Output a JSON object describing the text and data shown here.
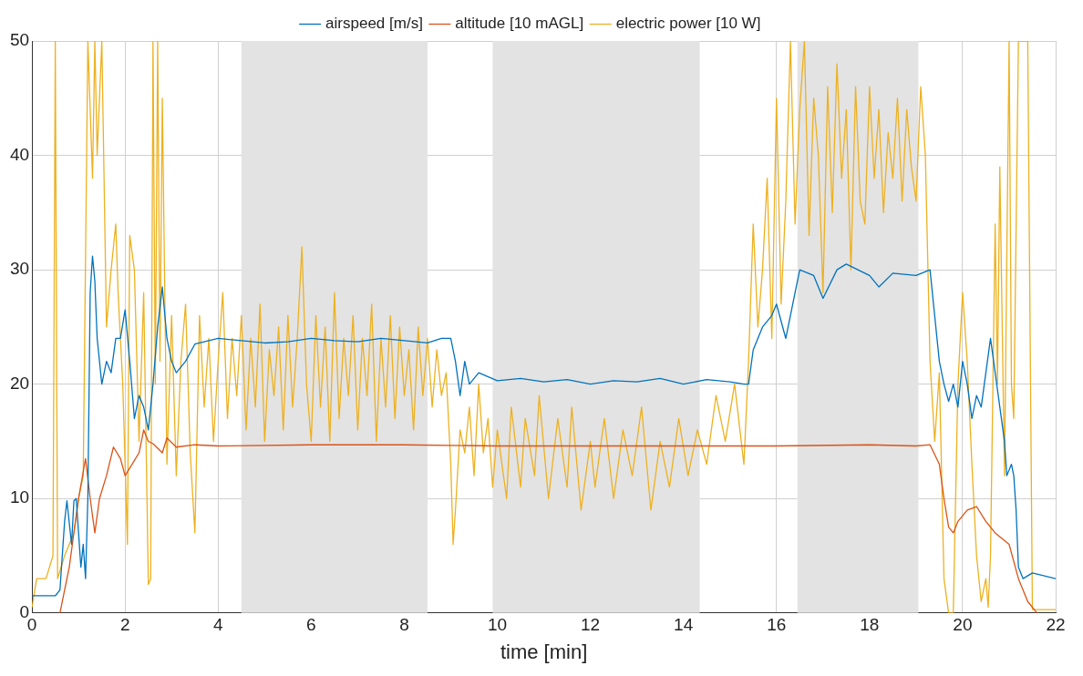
{
  "chart_data": {
    "type": "line",
    "xlabel": "time [min]",
    "xlim": [
      0,
      22
    ],
    "xticks": [
      0,
      2,
      4,
      6,
      8,
      10,
      12,
      14,
      16,
      18,
      20,
      22
    ],
    "ylim": [
      0,
      50
    ],
    "yticks": [
      0,
      10,
      20,
      30,
      40,
      50
    ],
    "grid": true,
    "legend": "top",
    "marker": "none",
    "line_style": "solid",
    "bands": [
      {
        "axis": "x",
        "from": 4.5,
        "to": 8.5,
        "color": "#e3e3e3"
      },
      {
        "axis": "x",
        "from": 9.9,
        "to": 14.35,
        "color": "#e3e3e3"
      },
      {
        "axis": "x",
        "from": 16.45,
        "to": 19.05,
        "color": "#e3e3e3"
      }
    ],
    "series": [
      {
        "name": "airspeed [m/s]",
        "color": "#0072bd",
        "x": [
          0,
          0.5,
          0.6,
          0.7,
          0.75,
          0.85,
          0.9,
          0.95,
          1.0,
          1.05,
          1.1,
          1.15,
          1.2,
          1.25,
          1.3,
          1.35,
          1.4,
          1.5,
          1.6,
          1.7,
          1.8,
          1.9,
          2.0,
          2.1,
          2.2,
          2.3,
          2.4,
          2.5,
          2.6,
          2.7,
          2.8,
          2.9,
          3.0,
          3.1,
          3.3,
          3.5,
          4.0,
          4.5,
          5,
          5.5,
          6,
          6.5,
          7,
          7.5,
          8,
          8.5,
          8.8,
          9.0,
          9.1,
          9.2,
          9.3,
          9.4,
          9.6,
          10,
          10.5,
          11,
          11.5,
          12,
          12.5,
          13,
          13.5,
          14,
          14.5,
          15,
          15.3,
          15.4,
          15.5,
          15.7,
          15.9,
          16.0,
          16.2,
          16.4,
          16.5,
          16.8,
          17,
          17.3,
          17.5,
          18,
          18.2,
          18.5,
          19,
          19.3,
          19.4,
          19.5,
          19.6,
          19.7,
          19.8,
          19.9,
          20.0,
          20.1,
          20.2,
          20.3,
          20.4,
          20.6,
          20.7,
          20.9,
          20.95,
          21.05,
          21.1,
          21.15,
          21.2,
          21.3,
          21.5,
          22
        ],
        "values": [
          1.5,
          1.5,
          2,
          8,
          9.8,
          6,
          9.8,
          10,
          7,
          4,
          6,
          3,
          10,
          28,
          31.2,
          29,
          24,
          20,
          22,
          21,
          24,
          24,
          26.5,
          22,
          17,
          19,
          18,
          16,
          20,
          25,
          28.5,
          24,
          22,
          21,
          22,
          23.5,
          24,
          23.8,
          23.6,
          23.7,
          24,
          23.8,
          23.7,
          24,
          23.8,
          23.6,
          24,
          24,
          22,
          19,
          22,
          20,
          21,
          20.3,
          20.5,
          20.2,
          20.4,
          20,
          20.3,
          20.2,
          20.5,
          20,
          20.4,
          20.2,
          20,
          20,
          23,
          25,
          26,
          27,
          24,
          28,
          30,
          29.5,
          27.5,
          30,
          30.5,
          29.5,
          28.5,
          29.7,
          29.5,
          30,
          26,
          22,
          20,
          18.5,
          20,
          18,
          22,
          20,
          17,
          19,
          18,
          24,
          21,
          15,
          12,
          13,
          12,
          9,
          4,
          3,
          3.5,
          3
        ]
      },
      {
        "name": "altitude [10 mAGL]",
        "color": "#d95319",
        "x": [
          0.6,
          0.8,
          1.0,
          1.15,
          1.25,
          1.35,
          1.45,
          1.6,
          1.75,
          1.9,
          2.0,
          2.15,
          2.3,
          2.4,
          2.5,
          2.6,
          2.8,
          2.9,
          3.1,
          3.5,
          4,
          6,
          8,
          10,
          12,
          14,
          16,
          18,
          19,
          19.3,
          19.5,
          19.6,
          19.7,
          19.8,
          19.9,
          20.1,
          20.3,
          20.5,
          20.7,
          21.0,
          21.2,
          21.4,
          21.6
        ],
        "values": [
          0,
          4,
          10,
          13.5,
          10,
          7,
          10,
          12,
          14.5,
          13.5,
          12,
          13,
          14,
          16,
          15,
          14.8,
          14,
          15.3,
          14.5,
          14.7,
          14.6,
          14.7,
          14.7,
          14.6,
          14.6,
          14.6,
          14.6,
          14.7,
          14.6,
          14.7,
          13,
          10,
          7.5,
          7,
          8,
          9,
          9.3,
          8,
          7,
          6,
          3,
          1,
          0
        ]
      },
      {
        "name": "electric power [10 W]",
        "color": "#edb120",
        "x": [
          0,
          0.1,
          0.3,
          0.45,
          0.5,
          0.55,
          0.7,
          0.9,
          1.0,
          1.1,
          1.2,
          1.3,
          1.35,
          1.4,
          1.5,
          1.6,
          1.7,
          1.8,
          1.85,
          1.95,
          2.05,
          2.1,
          2.2,
          2.3,
          2.4,
          2.5,
          2.55,
          2.6,
          2.65,
          2.7,
          2.75,
          2.8,
          2.9,
          3.0,
          3.1,
          3.2,
          3.3,
          3.4,
          3.5,
          3.6,
          3.7,
          3.8,
          3.9,
          4.0,
          4.1,
          4.2,
          4.3,
          4.4,
          4.5,
          4.6,
          4.7,
          4.8,
          4.9,
          5.0,
          5.1,
          5.2,
          5.3,
          5.4,
          5.5,
          5.6,
          5.7,
          5.8,
          5.9,
          6.0,
          6.1,
          6.2,
          6.3,
          6.4,
          6.5,
          6.6,
          6.7,
          6.8,
          6.9,
          7.0,
          7.1,
          7.2,
          7.3,
          7.4,
          7.5,
          7.6,
          7.7,
          7.8,
          7.9,
          8.0,
          8.1,
          8.2,
          8.3,
          8.4,
          8.5,
          8.6,
          8.7,
          8.8,
          8.9,
          9.0,
          9.05,
          9.1,
          9.2,
          9.3,
          9.4,
          9.5,
          9.6,
          9.7,
          9.8,
          9.9,
          10.0,
          10.2,
          10.3,
          10.5,
          10.6,
          10.8,
          10.9,
          11.1,
          11.3,
          11.5,
          11.6,
          11.8,
          12.0,
          12.1,
          12.3,
          12.5,
          12.7,
          12.9,
          13.1,
          13.3,
          13.5,
          13.7,
          13.9,
          14.1,
          14.3,
          14.5,
          14.7,
          14.9,
          15.1,
          15.3,
          15.4,
          15.5,
          15.6,
          15.7,
          15.8,
          15.9,
          16.0,
          16.1,
          16.2,
          16.3,
          16.4,
          16.5,
          16.6,
          16.7,
          16.8,
          16.9,
          17.0,
          17.1,
          17.2,
          17.3,
          17.4,
          17.5,
          17.6,
          17.7,
          17.8,
          17.9,
          18.0,
          18.1,
          18.2,
          18.3,
          18.4,
          18.5,
          18.6,
          18.7,
          18.8,
          18.9,
          19.0,
          19.1,
          19.2,
          19.3,
          19.4,
          19.5,
          19.6,
          19.7,
          19.8,
          19.9,
          20.0,
          20.1,
          20.2,
          20.3,
          20.4,
          20.5,
          20.55,
          20.6,
          20.7,
          20.75,
          20.8,
          20.9,
          21.0,
          21.05,
          21.1,
          21.2,
          21.3,
          21.4,
          21.5,
          22
        ],
        "values": [
          0.5,
          3,
          3,
          5,
          50,
          3,
          5,
          7,
          10,
          12,
          50,
          38,
          50,
          40,
          50,
          25,
          30,
          34,
          28,
          20,
          6,
          33,
          30,
          15,
          28,
          2.5,
          3,
          50,
          20,
          50,
          22,
          45,
          13,
          26,
          12,
          22,
          27,
          14,
          7,
          26,
          18,
          24,
          15,
          22,
          28,
          17,
          24,
          19,
          26,
          16,
          24,
          18,
          27,
          15,
          23,
          19,
          25,
          16,
          26,
          18,
          24,
          32,
          20,
          15,
          26,
          18,
          25,
          15,
          28,
          17,
          24,
          19,
          26,
          16,
          24,
          19,
          27,
          15,
          24,
          18,
          26,
          17,
          25,
          19,
          23,
          16,
          25,
          19,
          24,
          18,
          23,
          19,
          21,
          13,
          6,
          9,
          16,
          14,
          18,
          12,
          20,
          14,
          17,
          11,
          16,
          10,
          18,
          11,
          17,
          12,
          19,
          10,
          17,
          11,
          18,
          9,
          15,
          11,
          17,
          10,
          16,
          12,
          18,
          9,
          15,
          11,
          17,
          12,
          16,
          13,
          19,
          15,
          20,
          13,
          22,
          34,
          25,
          30,
          38,
          24,
          45,
          27,
          36,
          50,
          34,
          44,
          50,
          33,
          45,
          40,
          28,
          46,
          35,
          48,
          38,
          44,
          30,
          46,
          36,
          34,
          46,
          38,
          44,
          35,
          42,
          38,
          45,
          36,
          44,
          39,
          36,
          46,
          40,
          22,
          15,
          21,
          3,
          0,
          0,
          20,
          28,
          22,
          13,
          5,
          1,
          3,
          0.5,
          5,
          34,
          20,
          39,
          12,
          50,
          20,
          17,
          50,
          50,
          50,
          0.3,
          0.3
        ]
      }
    ]
  }
}
